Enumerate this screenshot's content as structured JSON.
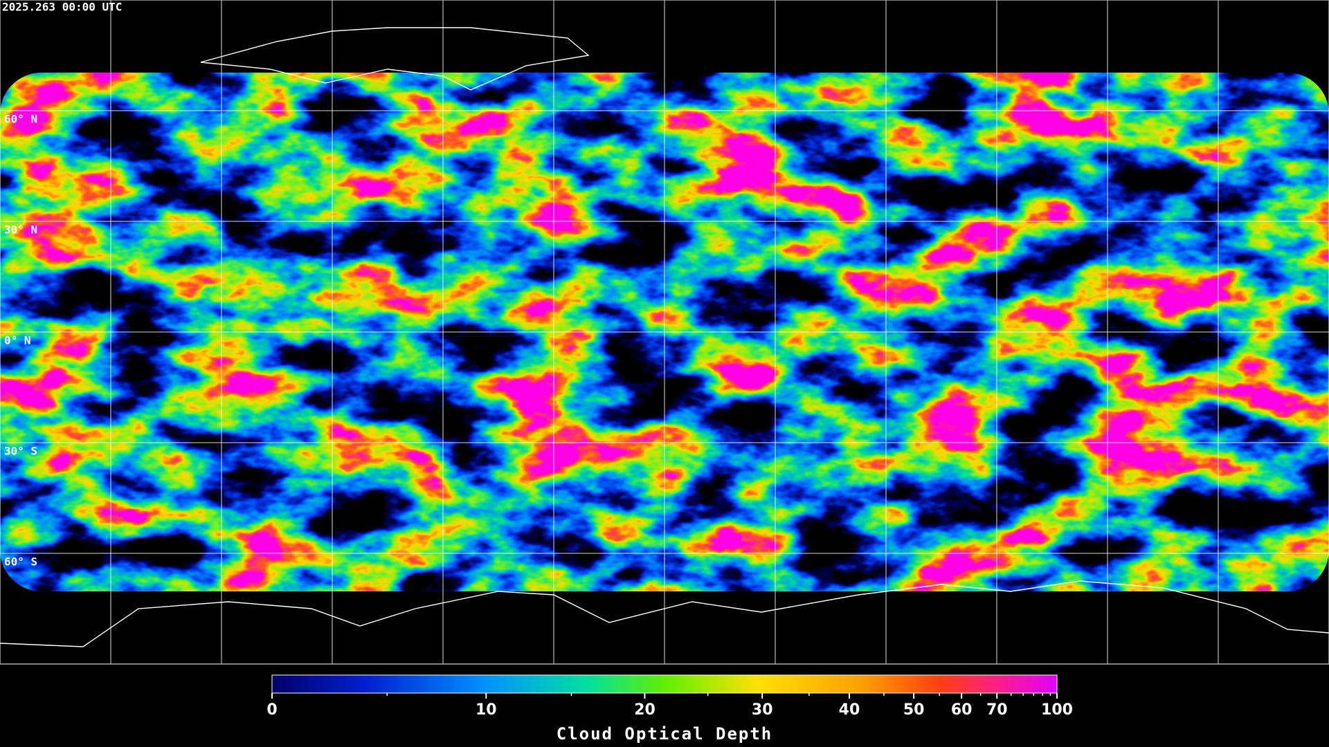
{
  "map": {
    "title": "2025.263 00:00 UTC",
    "xlim": [
      -180,
      180
    ],
    "ylim": [
      -90,
      90
    ],
    "longitudes": [
      -150,
      -120,
      -90,
      -60,
      -30,
      0,
      30,
      60,
      90,
      120,
      150
    ],
    "latitudes": [
      {
        "value": 60,
        "label": "60° N"
      },
      {
        "value": 30,
        "label": "30° N"
      },
      {
        "value": 0,
        "label": "0° N"
      },
      {
        "value": -30,
        "label": "30° S"
      },
      {
        "value": -60,
        "label": "60° S"
      }
    ],
    "colorbar": {
      "label": "Cloud Optical Depth",
      "clim": [
        0,
        100
      ],
      "ticks": [
        0,
        10,
        20,
        30,
        40,
        50,
        60,
        70,
        100
      ],
      "minor_ticks": [
        5,
        15,
        25,
        35,
        45,
        55,
        65,
        75,
        80,
        85,
        90,
        95
      ]
    }
  }
}
